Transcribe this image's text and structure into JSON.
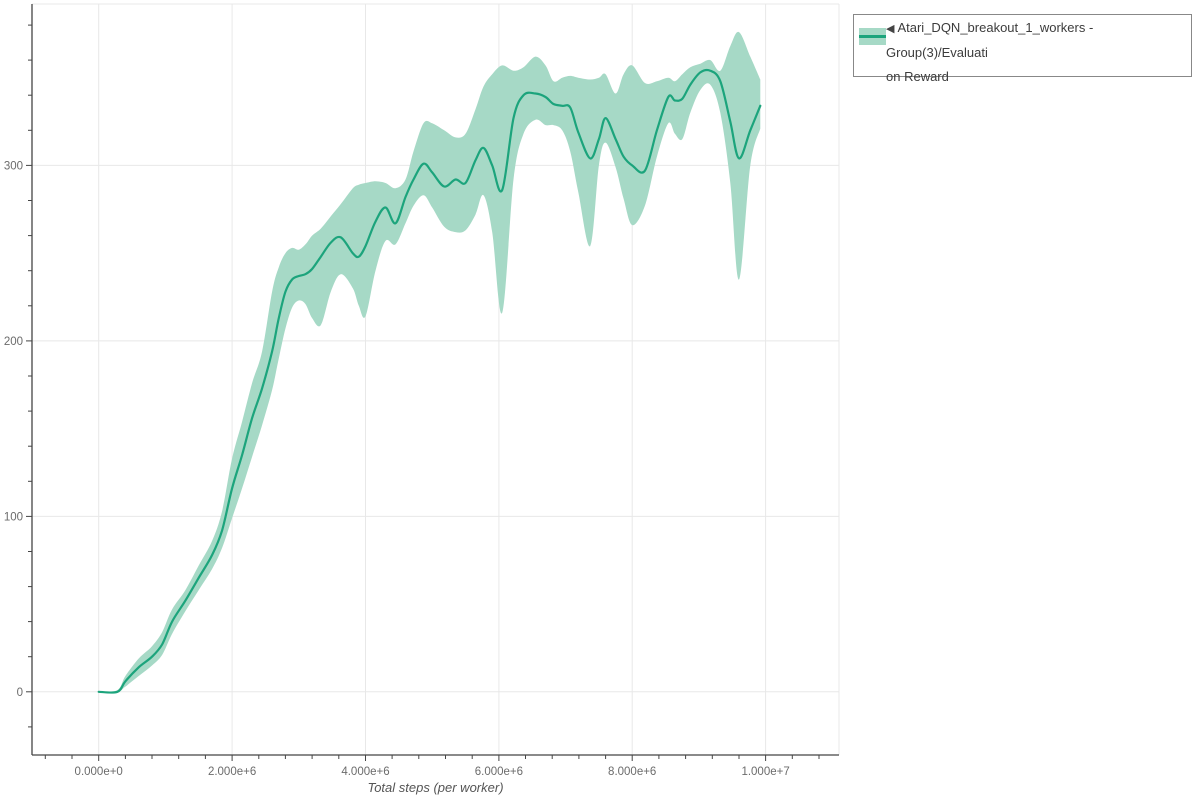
{
  "chart_data": {
    "type": "line",
    "title": "",
    "xlabel": "Total steps (per worker)",
    "ylabel": "",
    "xlim_e6": [
      -1.0,
      11.1
    ],
    "ylim": [
      -36,
      392
    ],
    "grid": true,
    "legend_position": "top-right-outside",
    "x_major_ticks": [
      {
        "value_e6": 0,
        "label": "0.000e+0"
      },
      {
        "value_e6": 2,
        "label": "2.000e+6"
      },
      {
        "value_e6": 4,
        "label": "4.000e+6"
      },
      {
        "value_e6": 6,
        "label": "6.000e+6"
      },
      {
        "value_e6": 8,
        "label": "8.000e+6"
      },
      {
        "value_e6": 10,
        "label": "1.000e+7"
      }
    ],
    "x_minor_step_e6": 0.4,
    "x_minor_range_e6": [
      -0.8,
      11.0
    ],
    "y_major_ticks": [
      {
        "value": 0,
        "label": "0"
      },
      {
        "value": 100,
        "label": "100"
      },
      {
        "value": 200,
        "label": "200"
      },
      {
        "value": 300,
        "label": "300"
      }
    ],
    "y_minor_step": 20,
    "y_minor_range": [
      -20,
      380
    ],
    "series": [
      {
        "name": "Atari_DQN_breakout_1_workers - Group(3)/Evaluation Reward",
        "line_color": "#1ca47c",
        "band_color": "#a6d9c6",
        "x_e6": [
          0.0,
          0.28,
          0.4,
          0.6,
          0.8,
          0.95,
          1.1,
          1.3,
          1.5,
          1.7,
          1.85,
          2.0,
          2.15,
          2.3,
          2.45,
          2.6,
          2.7,
          2.8,
          2.9,
          3.0,
          3.1,
          3.2,
          3.33,
          3.48,
          3.63,
          3.81,
          3.9,
          4.0,
          4.15,
          4.3,
          4.45,
          4.6,
          4.72,
          4.87,
          5.0,
          5.18,
          5.35,
          5.5,
          5.65,
          5.77,
          5.9,
          6.05,
          6.22,
          6.37,
          6.55,
          6.7,
          6.82,
          6.95,
          7.07,
          7.19,
          7.37,
          7.5,
          7.6,
          7.75,
          7.87,
          8.0,
          8.19,
          8.37,
          8.54,
          8.64,
          8.75,
          8.87,
          9.02,
          9.17,
          9.32,
          9.47,
          9.6,
          9.77,
          9.92
        ],
        "mean": [
          0,
          0,
          6,
          14,
          20,
          27,
          40,
          52,
          65,
          78,
          92,
          116,
          135,
          156,
          173,
          194,
          213,
          228,
          235,
          237,
          238,
          241,
          248,
          256,
          259,
          250,
          248,
          254,
          268,
          276,
          267,
          282,
          292,
          301,
          296,
          288,
          292,
          290,
          303,
          310,
          300,
          286,
          327,
          340,
          341,
          339,
          335,
          334,
          333,
          319,
          304,
          315,
          327,
          315,
          305,
          300,
          297,
          320,
          339,
          337,
          338,
          346,
          353,
          354,
          348,
          325,
          304,
          320,
          334
        ],
        "band_low": [
          0,
          0,
          3,
          9,
          15,
          21,
          33,
          46,
          58,
          70,
          82,
          99,
          116,
          134,
          152,
          172,
          190,
          207,
          219,
          223,
          221,
          213,
          209,
          228,
          238,
          230,
          220,
          214,
          240,
          257,
          255,
          267,
          277,
          283,
          276,
          265,
          262,
          263,
          272,
          283,
          262,
          216,
          292,
          318,
          326,
          323,
          323,
          320,
          308,
          285,
          254,
          300,
          313,
          299,
          281,
          266,
          277,
          305,
          324,
          318,
          315,
          330,
          343,
          346,
          330,
          290,
          235,
          300,
          321
        ],
        "band_high": [
          0,
          1,
          9,
          19,
          26,
          34,
          47,
          58,
          72,
          86,
          103,
          133,
          154,
          176,
          194,
          228,
          242,
          250,
          253,
          252,
          255,
          260,
          264,
          271,
          278,
          287,
          289,
          290,
          291,
          290,
          287,
          292,
          308,
          324,
          324,
          320,
          316,
          318,
          332,
          345,
          352,
          357,
          354,
          356,
          362,
          357,
          348,
          350,
          351,
          350,
          349,
          350,
          352,
          341,
          352,
          357,
          347,
          348,
          350,
          348,
          352,
          356,
          358,
          360,
          354,
          368,
          376,
          362,
          349
        ]
      }
    ]
  },
  "legend": {
    "marker_arrow": "◀",
    "lines": [
      "Atari_DQN_breakout_1_workers - Group(3)/Evaluati",
      "on Reward"
    ]
  },
  "colors": {
    "background": "#ffffff",
    "grid": "#e8e8e8",
    "axis": "#444444",
    "tick_label": "#6b6b6b",
    "axis_title": "#555555",
    "legend_border": "#888888",
    "line": "#1ca47c",
    "band": "#a6d9c6"
  }
}
